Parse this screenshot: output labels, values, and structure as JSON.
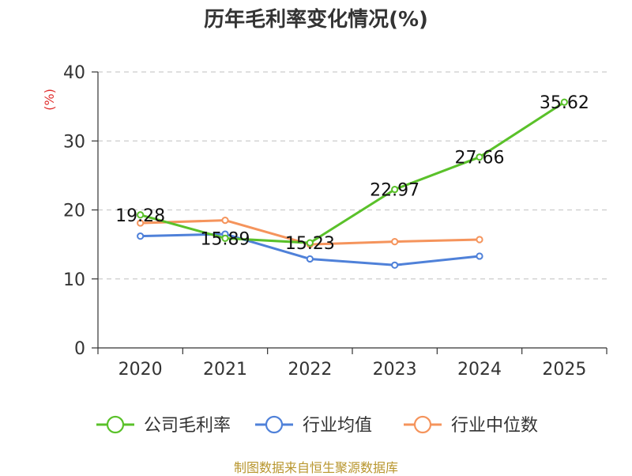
{
  "chart_data": {
    "type": "line",
    "title": "历年毛利率变化情况(%)",
    "ylabel": "(%)",
    "xlabel": "",
    "categories": [
      "2020",
      "2021",
      "2022",
      "2023",
      "2024",
      "2025"
    ],
    "ylim": [
      0,
      40
    ],
    "yticks": [
      0,
      10,
      20,
      30,
      40
    ],
    "grid": true,
    "legend_position": "bottom",
    "series": [
      {
        "name": "公司毛利率",
        "color": "#5ac12a",
        "values": [
          19.28,
          15.89,
          15.23,
          22.97,
          27.66,
          35.62
        ],
        "value_labels": [
          "19.28",
          "15.89",
          "15.23",
          "22.97",
          "27.66",
          "35.62"
        ]
      },
      {
        "name": "行业均值",
        "color": "#4f81d9",
        "values": [
          16.2,
          16.5,
          12.9,
          12.0,
          13.3,
          null
        ]
      },
      {
        "name": "行业中位数",
        "color": "#f5945c",
        "values": [
          18.1,
          18.5,
          15.0,
          15.4,
          15.7,
          null
        ]
      }
    ]
  },
  "source": "制图数据来自恒生聚源数据库"
}
